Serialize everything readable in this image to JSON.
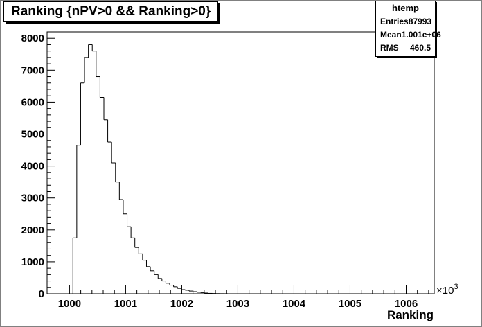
{
  "title": "Ranking {nPV>0 && Ranking>0}",
  "stats": {
    "name": "htemp",
    "rows": [
      {
        "label": "Entries",
        "value": "87993"
      },
      {
        "label": "Mean",
        "value": "1.001e+06"
      },
      {
        "label": "RMS",
        "value": "460.5"
      }
    ]
  },
  "chart_data": {
    "type": "bar",
    "style": "step-histogram",
    "xlabel": "Ranking",
    "ylabel": "",
    "x_multiplier": "×10",
    "x_multiplier_exp": "3",
    "xlim": [
      999.6,
      1006.5
    ],
    "ylim": [
      0,
      8200
    ],
    "xticks": [
      1000,
      1001,
      1002,
      1003,
      1004,
      1005,
      1006
    ],
    "xtick_labels": [
      "1000",
      "1001",
      "1002",
      "1003",
      "1004",
      "1005",
      "1006"
    ],
    "yticks": [
      0,
      1000,
      2000,
      3000,
      4000,
      5000,
      6000,
      7000,
      8000
    ],
    "ytick_labels": [
      "0",
      "1000",
      "2000",
      "3000",
      "4000",
      "5000",
      "6000",
      "7000",
      "8000"
    ],
    "bin_width": 0.069,
    "x_start": 1000.06,
    "values": [
      1750,
      4650,
      6600,
      7400,
      7800,
      7600,
      6800,
      6150,
      5450,
      4750,
      4100,
      3500,
      2950,
      2500,
      2100,
      1750,
      1450,
      1250,
      1050,
      850,
      720,
      600,
      480,
      400,
      330,
      270,
      220,
      170,
      130,
      110,
      85,
      65,
      45,
      35,
      22,
      12,
      8,
      5,
      3,
      2
    ]
  }
}
